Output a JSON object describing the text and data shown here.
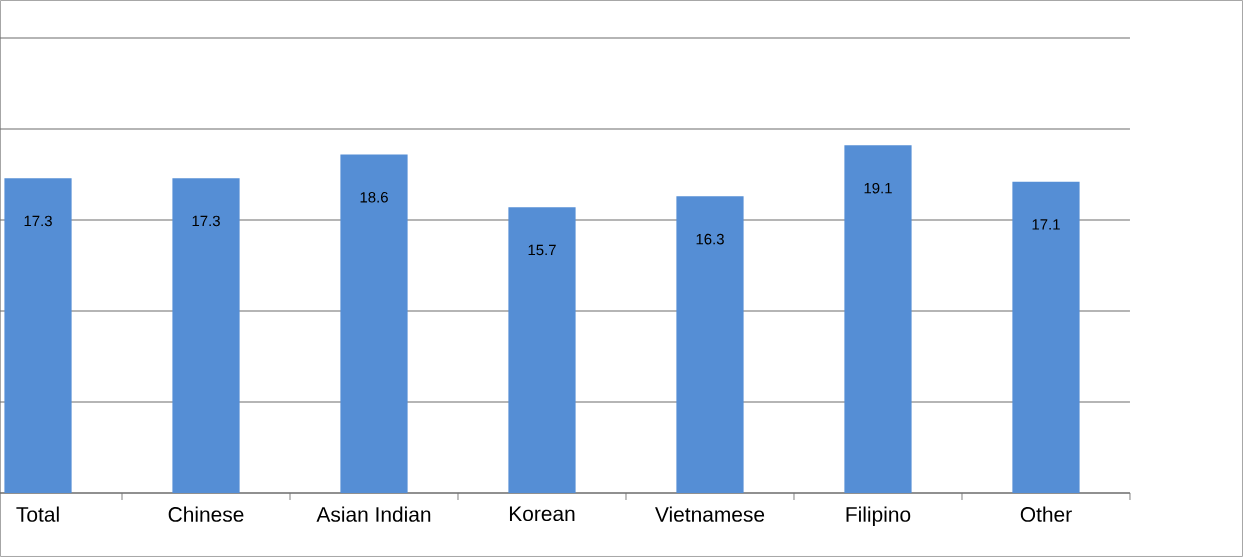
{
  "chart_data": {
    "type": "bar",
    "categories": [
      "Total",
      "Chinese",
      "Asian Indian",
      "Korean",
      "Vietnamese",
      "Filipino",
      "Other"
    ],
    "values": [
      17.3,
      17.3,
      18.6,
      15.7,
      16.3,
      19.1,
      17.1
    ],
    "color": "#558ed5",
    "ylim": [
      0,
      25
    ],
    "yticks": [
      {
        "value": 0,
        "label": null
      },
      {
        "value": 5,
        "label": null
      },
      {
        "value": 10,
        "label": null
      },
      {
        "value": 15,
        "label": null
      },
      {
        "value": 20,
        "label": null
      },
      {
        "value": 25,
        "label": null
      }
    ],
    "grid": "y",
    "tick_labels": "x",
    "data_labels": true
  }
}
